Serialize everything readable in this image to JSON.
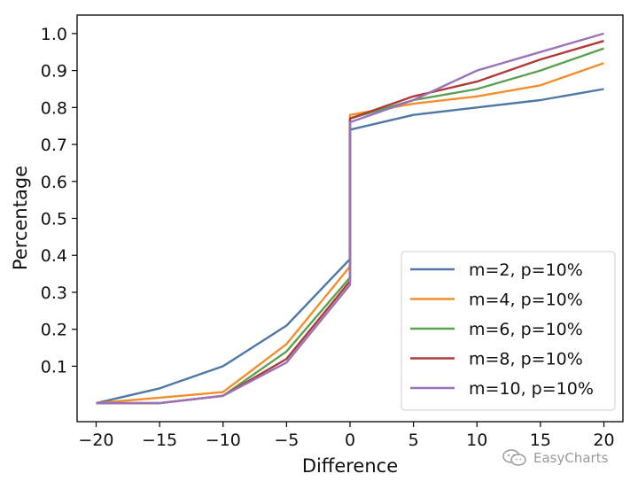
{
  "chart_data": {
    "type": "line",
    "title": "",
    "xlabel": "Difference",
    "ylabel": "Percentage",
    "x": [
      -20,
      -15,
      -10,
      -5,
      0,
      0,
      5,
      10,
      15,
      20
    ],
    "xlim": [
      -21.5,
      21.5
    ],
    "ylim": [
      -0.05,
      1.05
    ],
    "xticks": [
      "−20",
      "−15",
      "−10",
      "−5",
      "0",
      "5",
      "10",
      "15",
      "20"
    ],
    "xtick_values": [
      -20,
      -15,
      -10,
      -5,
      0,
      5,
      10,
      15,
      20
    ],
    "yticks": [
      "0.1",
      "0.2",
      "0.3",
      "0.4",
      "0.5",
      "0.6",
      "0.7",
      "0.8",
      "0.9",
      "1.0"
    ],
    "ytick_values": [
      0.1,
      0.2,
      0.3,
      0.4,
      0.5,
      0.6,
      0.7,
      0.8,
      0.9,
      1.0
    ],
    "grid": false,
    "legend_position": "bottom-right",
    "series": [
      {
        "name": "m=2, p=10%",
        "color": "#4e79a7",
        "values": [
          0.0,
          0.04,
          0.1,
          0.21,
          0.39,
          0.74,
          0.78,
          0.8,
          0.82,
          0.85
        ]
      },
      {
        "name": "m=4, p=10%",
        "color": "#f28e2b",
        "values": [
          0.0,
          0.015,
          0.03,
          0.16,
          0.37,
          0.78,
          0.81,
          0.83,
          0.86,
          0.92
        ]
      },
      {
        "name": "m=6, p=10%",
        "color": "#59a14f",
        "values": [
          0.0,
          0.0,
          0.02,
          0.14,
          0.34,
          0.77,
          0.82,
          0.85,
          0.9,
          0.96
        ]
      },
      {
        "name": "m=8, p=10%",
        "color": "#b03a3a",
        "values": [
          0.0,
          0.0,
          0.02,
          0.12,
          0.33,
          0.77,
          0.83,
          0.87,
          0.93,
          0.98
        ]
      },
      {
        "name": "m=10, p=10%",
        "color": "#9b73b8",
        "values": [
          0.0,
          0.0,
          0.02,
          0.11,
          0.32,
          0.76,
          0.82,
          0.9,
          0.95,
          1.0
        ]
      }
    ]
  },
  "watermark": {
    "text": "EasyCharts",
    "icon": "wechat-icon"
  }
}
